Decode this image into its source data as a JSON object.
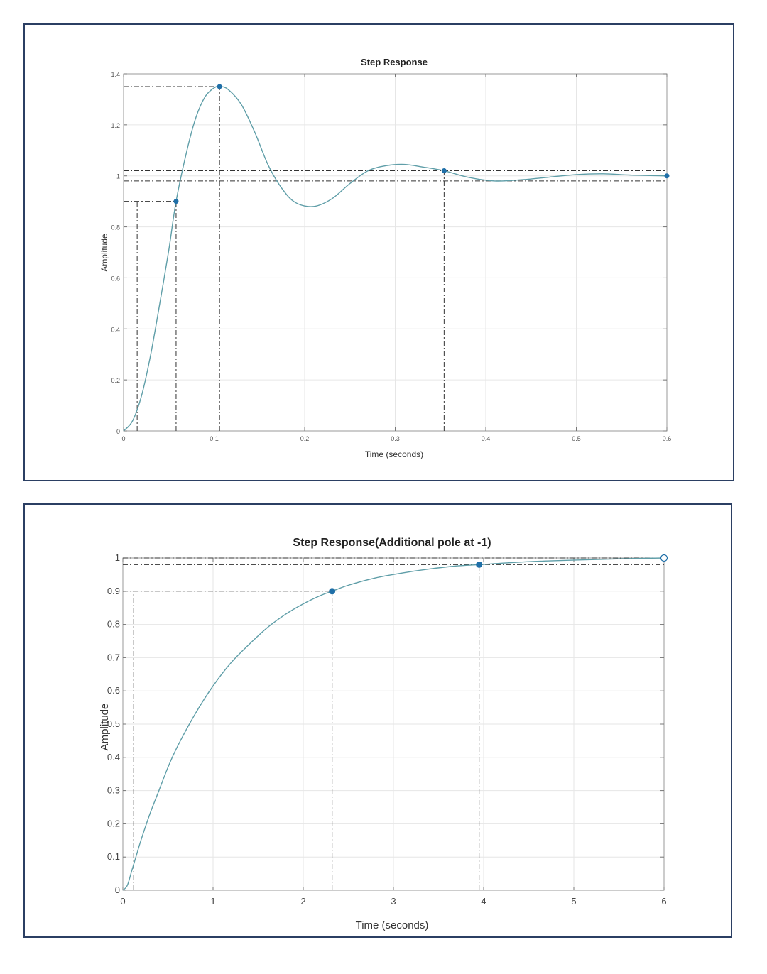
{
  "chart_data": [
    {
      "type": "line",
      "title": "Step Response",
      "xlabel": "Time (seconds)",
      "ylabel": "Amplitude",
      "xlim": [
        0,
        0.6
      ],
      "ylim": [
        0,
        1.4
      ],
      "x_ticks": [
        "0",
        "0.1",
        "0.2",
        "0.3",
        "0.4",
        "0.5",
        "0.6"
      ],
      "y_ticks": [
        "0",
        "0.2",
        "0.4",
        "0.6",
        "0.8",
        "1",
        "1.2",
        "1.4"
      ],
      "grid": true,
      "series": [
        {
          "x": [
            0,
            0.01,
            0.02,
            0.03,
            0.04,
            0.05,
            0.058,
            0.07,
            0.08,
            0.09,
            0.1,
            0.106,
            0.115,
            0.13,
            0.145,
            0.16,
            0.175,
            0.19,
            0.21,
            0.23,
            0.25,
            0.27,
            0.29,
            0.31,
            0.33,
            0.354,
            0.38,
            0.41,
            0.44,
            0.47,
            0.5,
            0.53,
            0.56,
            0.6
          ],
          "values": [
            0,
            0.04,
            0.14,
            0.3,
            0.5,
            0.71,
            0.9,
            1.1,
            1.23,
            1.31,
            1.345,
            1.35,
            1.34,
            1.28,
            1.17,
            1.04,
            0.95,
            0.895,
            0.88,
            0.91,
            0.97,
            1.02,
            1.04,
            1.045,
            1.035,
            1.02,
            0.995,
            0.98,
            0.985,
            0.995,
            1.005,
            1.008,
            1.003,
            1.0
          ]
        }
      ],
      "markers": [
        {
          "x": 0.058,
          "y": 0.9
        },
        {
          "x": 0.106,
          "y": 1.35
        },
        {
          "x": 0.354,
          "y": 1.02
        },
        {
          "x": 0.6,
          "y": 1.0
        }
      ],
      "reference_lines": {
        "horizontal": [
          1.35,
          1.02,
          0.98,
          0.9
        ],
        "vertical": [
          0.015,
          0.058,
          0.106,
          0.354
        ]
      }
    },
    {
      "type": "line",
      "title": "Step Response(Additional pole at -1)",
      "xlabel": "Time (seconds)",
      "ylabel": "Amplitude",
      "xlim": [
        0,
        6
      ],
      "ylim": [
        0,
        1
      ],
      "x_ticks": [
        "0",
        "1",
        "2",
        "3",
        "4",
        "5",
        "6"
      ],
      "y_ticks": [
        "0",
        "0.1",
        "0.2",
        "0.3",
        "0.4",
        "0.5",
        "0.6",
        "0.7",
        "0.8",
        "0.9",
        "1"
      ],
      "grid": true,
      "series": [
        {
          "x": [
            0,
            0.05,
            0.1,
            0.15,
            0.2,
            0.3,
            0.4,
            0.5,
            0.6,
            0.8,
            1.0,
            1.2,
            1.4,
            1.6,
            1.8,
            2.0,
            2.2,
            2.32,
            2.5,
            2.8,
            3.1,
            3.4,
            3.7,
            3.95,
            4.3,
            4.7,
            5.2,
            5.6,
            6.0
          ],
          "values": [
            0,
            0.015,
            0.06,
            0.105,
            0.15,
            0.23,
            0.3,
            0.37,
            0.43,
            0.53,
            0.615,
            0.685,
            0.74,
            0.79,
            0.83,
            0.862,
            0.888,
            0.9,
            0.918,
            0.94,
            0.955,
            0.967,
            0.976,
            0.98,
            0.986,
            0.991,
            0.995,
            0.998,
            1.0
          ]
        }
      ],
      "markers": [
        {
          "x": 2.32,
          "y": 0.9
        },
        {
          "x": 3.95,
          "y": 0.98
        },
        {
          "x": 6.0,
          "y": 1.0,
          "hollow": true
        }
      ],
      "reference_lines": {
        "horizontal": [
          1.0,
          0.98,
          0.9
        ],
        "vertical": [
          0.12,
          2.32,
          3.95
        ]
      }
    }
  ],
  "colors": {
    "line": "#5f9ea8",
    "marker": "#1f6fa8",
    "frame": "#2b3f63",
    "refline": "#333333",
    "grid": "#e6e6e6"
  }
}
